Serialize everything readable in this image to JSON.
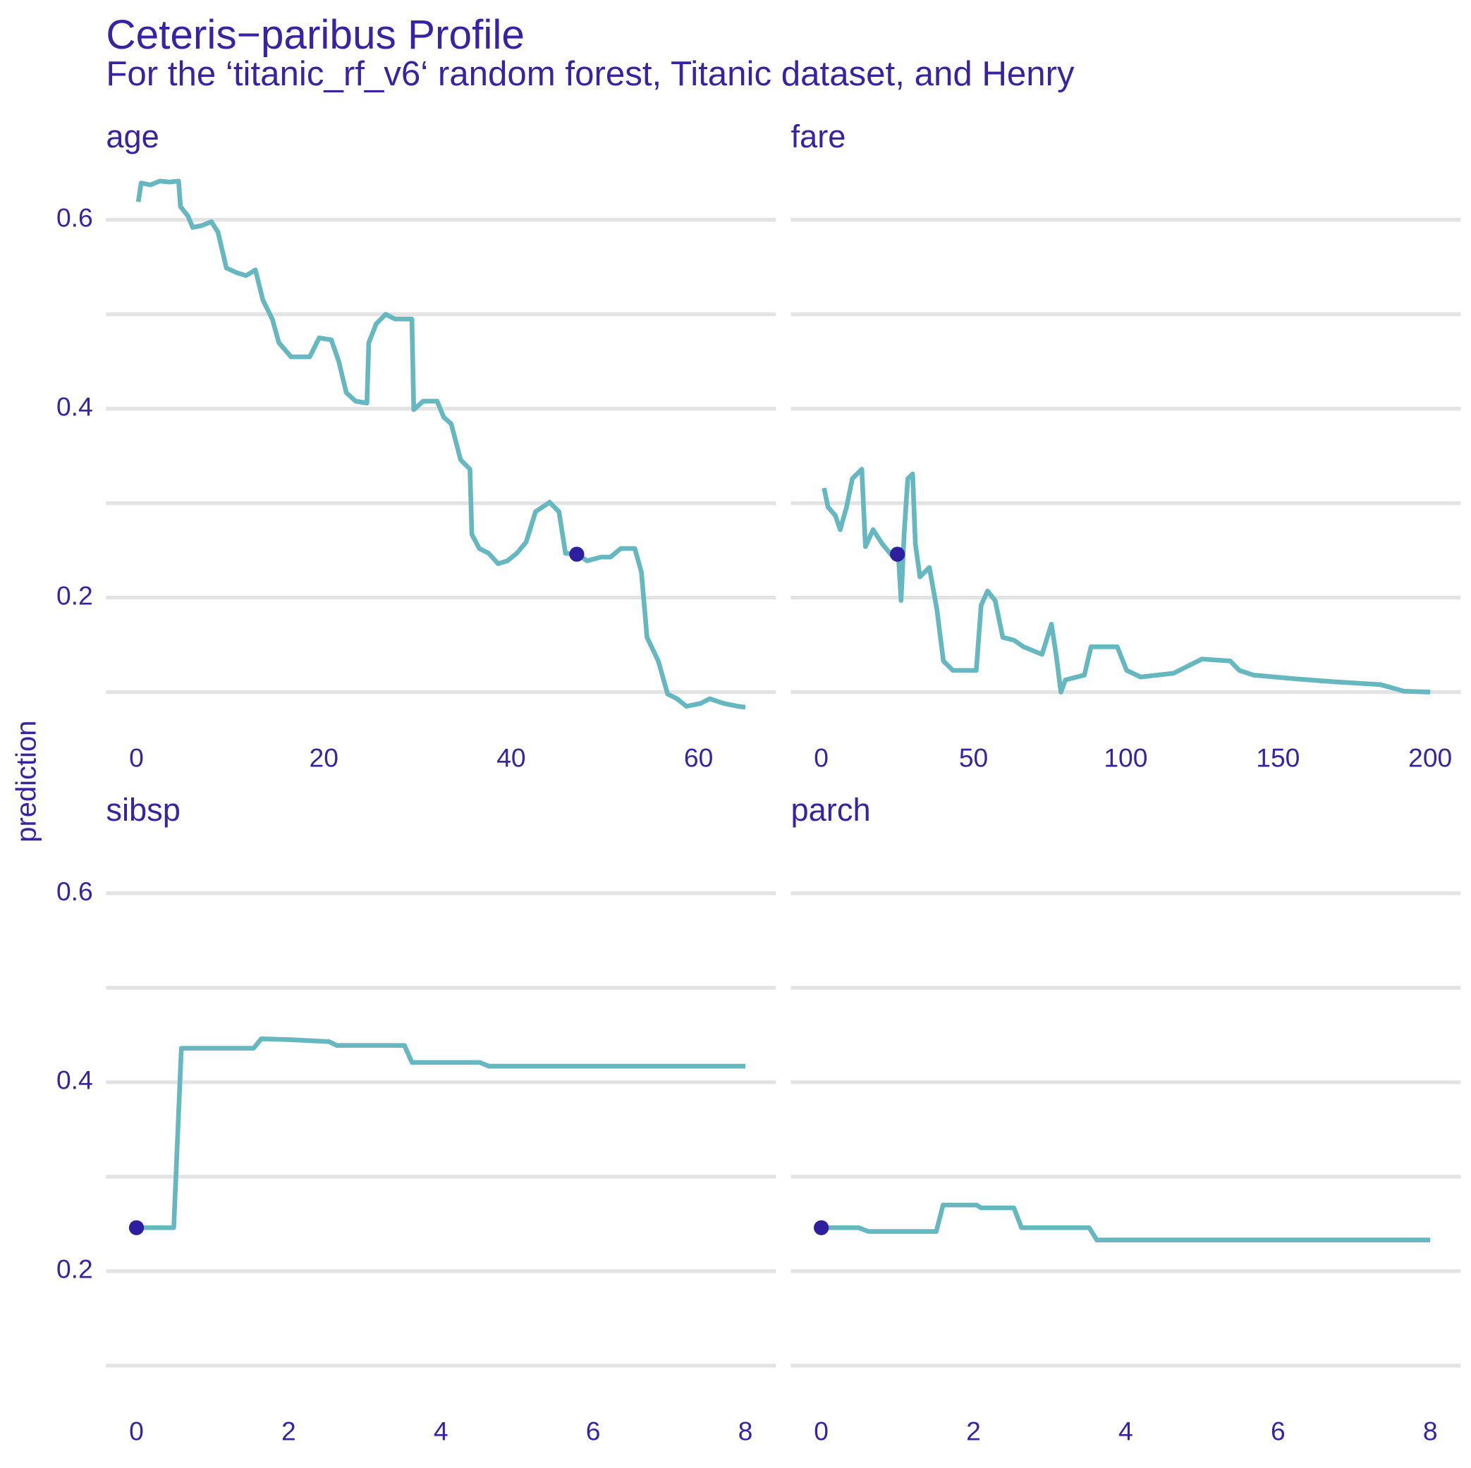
{
  "title": "Ceteris−paribus Profile",
  "subtitle": "For the ‘titanic_rf_v6‘ random forest, Titanic dataset, and Henry",
  "ylabel": "prediction",
  "chart_data": [
    {
      "type": "line",
      "title": "age",
      "color": "#66b8c0",
      "x": [
        0.2,
        0.5,
        1.5,
        2.5,
        3.5,
        4.5,
        4.7,
        5.5,
        6,
        7,
        8,
        8.7,
        9.6,
        10.7,
        11.7,
        12.7,
        13.5,
        14.5,
        15.2,
        16.5,
        18.5,
        19.5,
        20.8,
        21.6,
        22.4,
        23.4,
        24.6,
        24.8,
        25.6,
        26.6,
        27.6,
        29.4,
        29.6,
        30.6,
        32.1,
        32.8,
        33.6,
        34.6,
        35.6,
        35.8,
        36.6,
        37.6,
        38.6,
        39.6,
        40.6,
        41.6,
        42.6,
        44.1,
        45.1,
        45.8,
        47.1,
        48.1,
        49.6,
        50.6,
        51.7,
        53.2,
        53.9,
        54.5,
        55.7,
        56.7,
        57.7,
        58.7,
        60.2,
        61.2,
        62.7,
        64.2,
        65
      ],
      "values": [
        0.619,
        0.639,
        0.637,
        0.641,
        0.64,
        0.641,
        0.614,
        0.604,
        0.592,
        0.594,
        0.598,
        0.587,
        0.549,
        0.544,
        0.541,
        0.547,
        0.515,
        0.495,
        0.47,
        0.455,
        0.455,
        0.475,
        0.473,
        0.45,
        0.417,
        0.408,
        0.406,
        0.47,
        0.49,
        0.5,
        0.495,
        0.495,
        0.399,
        0.408,
        0.408,
        0.391,
        0.384,
        0.346,
        0.336,
        0.267,
        0.252,
        0.247,
        0.236,
        0.239,
        0.247,
        0.259,
        0.291,
        0.301,
        0.291,
        0.247,
        0.246,
        0.239,
        0.243,
        0.243,
        0.252,
        0.252,
        0.227,
        0.158,
        0.133,
        0.098,
        0.093,
        0.085,
        0.088,
        0.093,
        0.088,
        0.085,
        0.084
      ],
      "point": {
        "x": 47,
        "y": 0.246,
        "color": "#2e1f9f"
      },
      "xlim": [
        -3.25,
        68.25
      ],
      "ylim": [
        0.08,
        0.65
      ],
      "xticks": [
        0,
        20,
        40,
        60
      ],
      "yticks": [
        0.2,
        0.4,
        0.6
      ],
      "minor_yticks": [
        0.1,
        0.3,
        0.5
      ]
    },
    {
      "type": "line",
      "title": "fare",
      "color": "#66b8c0",
      "x": [
        0.9,
        2.2,
        4.6,
        6.2,
        8.3,
        10.2,
        13.3,
        14.5,
        17,
        20,
        23.1,
        25.3,
        26.2,
        27.2,
        28.4,
        30,
        30.9,
        32.4,
        35.5,
        38,
        40.1,
        43.2,
        50.9,
        52.5,
        54.6,
        57.1,
        59.6,
        63.3,
        66.4,
        72.5,
        75.6,
        77.2,
        78.7,
        80.2,
        86.4,
        88.6,
        97.2,
        100.3,
        104.9,
        115.7,
        125,
        134.3,
        137.3,
        142,
        155.9,
        168.2,
        183.6,
        191.4,
        200
      ],
      "values": [
        0.316,
        0.296,
        0.287,
        0.272,
        0.296,
        0.326,
        0.336,
        0.254,
        0.272,
        0.257,
        0.245,
        0.246,
        0.197,
        0.267,
        0.326,
        0.331,
        0.257,
        0.222,
        0.232,
        0.187,
        0.133,
        0.123,
        0.123,
        0.192,
        0.207,
        0.197,
        0.158,
        0.155,
        0.148,
        0.14,
        0.172,
        0.138,
        0.1,
        0.113,
        0.118,
        0.148,
        0.148,
        0.123,
        0.116,
        0.12,
        0.135,
        0.133,
        0.123,
        0.118,
        0.114,
        0.111,
        0.108,
        0.101,
        0.1
      ],
      "point": {
        "x": 25,
        "y": 0.246,
        "color": "#2e1f9f"
      },
      "xlim": [
        -10,
        210
      ],
      "ylim": [
        0.08,
        0.65
      ],
      "xticks": [
        0,
        50,
        100,
        150,
        200
      ],
      "yticks": [
        0.2,
        0.4,
        0.6
      ],
      "minor_yticks": [
        0.1,
        0.3,
        0.5
      ]
    },
    {
      "type": "line",
      "title": "sibsp",
      "color": "#66b8c0",
      "x": [
        0,
        0.49,
        0.59,
        1.54,
        1.64,
        2.04,
        2.53,
        2.63,
        3.52,
        3.62,
        4.51,
        4.63,
        8
      ],
      "values": [
        0.246,
        0.246,
        0.436,
        0.436,
        0.446,
        0.445,
        0.443,
        0.439,
        0.439,
        0.421,
        0.421,
        0.417,
        0.417
      ],
      "point": {
        "x": 0,
        "y": 0.246,
        "color": "#2e1f9f"
      },
      "xlim": [
        -0.4,
        8.4
      ],
      "ylim": [
        0.08,
        0.65
      ],
      "xticks": [
        0,
        2,
        4,
        6,
        8
      ],
      "yticks": [
        0.2,
        0.4,
        0.6
      ],
      "minor_yticks": [
        0.1,
        0.3,
        0.5
      ]
    },
    {
      "type": "line",
      "title": "parch",
      "color": "#66b8c0",
      "x": [
        0,
        0.49,
        0.62,
        1.51,
        1.6,
        2.04,
        2.1,
        2.53,
        2.63,
        3.52,
        3.62,
        8
      ],
      "values": [
        0.246,
        0.246,
        0.242,
        0.242,
        0.27,
        0.27,
        0.267,
        0.267,
        0.246,
        0.246,
        0.233,
        0.233
      ],
      "point": {
        "x": 0,
        "y": 0.246,
        "color": "#2e1f9f"
      },
      "xlim": [
        -0.4,
        8.4
      ],
      "ylim": [
        0.08,
        0.65
      ],
      "xticks": [
        0,
        2,
        4,
        6,
        8
      ],
      "yticks": [
        0.2,
        0.4,
        0.6
      ],
      "minor_yticks": [
        0.1,
        0.3,
        0.5
      ]
    }
  ]
}
